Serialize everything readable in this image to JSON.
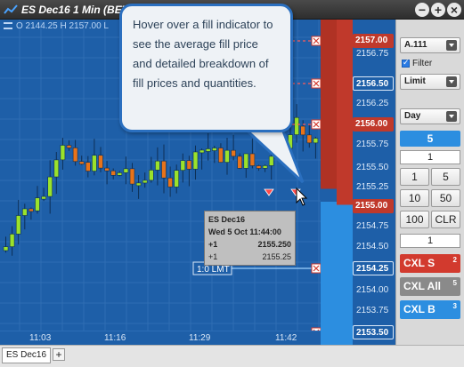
{
  "window": {
    "title": "ES Dec16 1 Min (BET)",
    "icons": [
      "chart-line-icon",
      "minimize-icon",
      "maximize-icon",
      "close-icon"
    ]
  },
  "chart": {
    "ohlc": "O 2144.25  H 2157.00  L",
    "x_labels": [
      "11:03",
      "11:16",
      "11:29",
      "11:42"
    ],
    "orders": [
      "1:0 LMT",
      "1:0 LMT"
    ]
  },
  "price_axis": {
    "labels": [
      "2156.75",
      "2156.25",
      "2155.75",
      "2155.50",
      "2155.25",
      "2154.75",
      "2154.50",
      "2154.00",
      "2153.75"
    ],
    "badges": [
      {
        "price": "2157.00",
        "color": "#c0392b"
      },
      {
        "price": "2156.50",
        "color": "#1e5fa8"
      },
      {
        "price": "2156.00",
        "color": "#c0392b"
      },
      {
        "price": "2155.00",
        "color": "#c0392b"
      },
      {
        "price": "2154.25",
        "color": "#1e5fa8"
      },
      {
        "price": "2153.50",
        "color": "#1e5fa8"
      }
    ]
  },
  "panel": {
    "account": "A.111",
    "filter_label": "Filter",
    "order_type": "Limit",
    "tif": "Day",
    "qty_display": "5",
    "qty_field": "1",
    "keypad": [
      "1",
      "5",
      "10",
      "50",
      "100",
      "CLR"
    ],
    "qty_field2": "1",
    "cxl_s": {
      "label": "CXL S",
      "count": "2"
    },
    "cxl_all": {
      "label": "CXL All",
      "count": "5"
    },
    "cxl_b": {
      "label": "CXL B",
      "count": "3"
    }
  },
  "callout": {
    "text": "Hover over a fill indicator to see the average fill price and detailed breakdown of fill prices and quantities."
  },
  "tooltip": {
    "title": "ES Dec16",
    "datetime": "Wed 5 Oct 11:44:00",
    "avg_qty": "+1",
    "avg_price": "2155.250",
    "fill_qty": "+1",
    "fill_price": "2155.25"
  },
  "tabs": {
    "active": "ES Dec16",
    "add": "+"
  },
  "colors": {
    "chart_bg": "#1e5fa8",
    "up_candle": "#9be22b",
    "down_candle": "#e8731a",
    "sell": "#c0392b",
    "buy": "#2c8ee0"
  }
}
